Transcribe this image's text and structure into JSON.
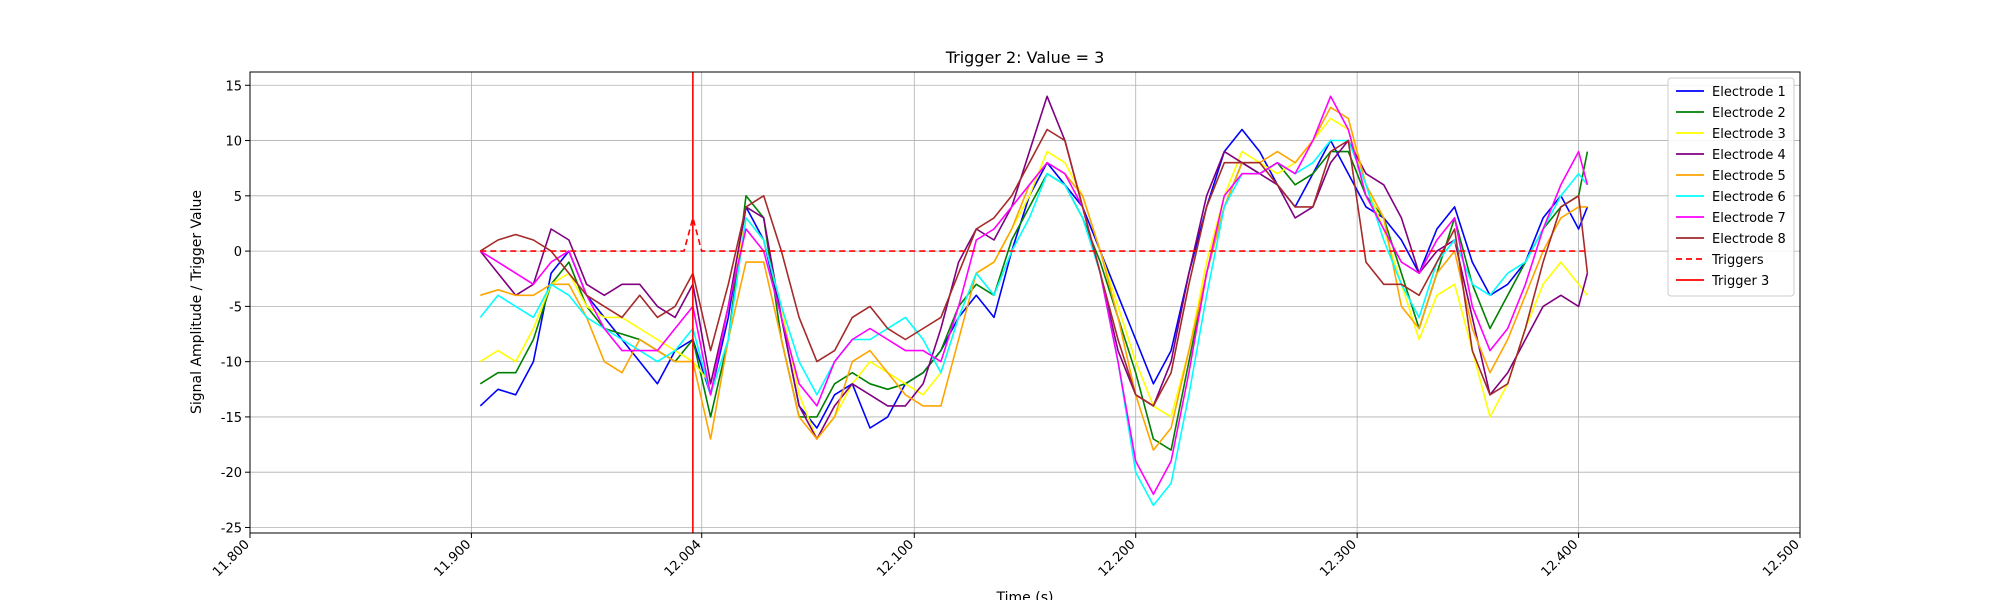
{
  "chart_data": {
    "type": "line",
    "title": "Trigger 2: Value = 3",
    "xlabel": "Time (s)",
    "ylabel": "Signal Amplitude / Trigger Value",
    "xlim": [
      11.8,
      12.5
    ],
    "ylim": [
      -25.5,
      16.2
    ],
    "x_ticks": [
      11.8,
      11.9,
      12.004,
      12.1,
      12.2,
      12.3,
      12.4,
      12.5
    ],
    "x_tick_labels": [
      "11.800",
      "11.900",
      "12.004",
      "12.100",
      "12.200",
      "12.300",
      "12.400",
      "12.500"
    ],
    "y_ticks": [
      -25,
      -20,
      -15,
      -10,
      -5,
      0,
      5,
      10,
      15
    ],
    "grid": true,
    "legend_position": "top-right",
    "x": [
      11.904,
      11.912,
      11.92,
      11.928,
      11.936,
      11.944,
      11.952,
      11.96,
      11.968,
      11.976,
      11.984,
      11.992,
      12.0,
      12.008,
      12.016,
      12.024,
      12.032,
      12.04,
      12.048,
      12.056,
      12.064,
      12.072,
      12.08,
      12.088,
      12.096,
      12.104,
      12.112,
      12.12,
      12.128,
      12.136,
      12.144,
      12.152,
      12.16,
      12.168,
      12.176,
      12.184,
      12.192,
      12.2,
      12.208,
      12.216,
      12.224,
      12.232,
      12.24,
      12.248,
      12.256,
      12.264,
      12.272,
      12.28,
      12.288,
      12.296,
      12.304,
      12.312,
      12.32,
      12.328,
      12.336,
      12.344,
      12.352,
      12.36,
      12.368,
      12.376,
      12.384,
      12.392,
      12.4,
      12.404
    ],
    "series": [
      {
        "name": "Electrode 1",
        "color": "#0000ff",
        "values": [
          -14,
          -12.5,
          -13,
          -10,
          -2,
          0,
          -4,
          -6,
          -8,
          -10,
          -12,
          -9,
          -8,
          -13,
          -6,
          4,
          1,
          -6,
          -14,
          -16,
          -13,
          -12,
          -16,
          -15,
          -12,
          -11,
          -9,
          -6,
          -4,
          -6,
          0,
          5,
          8,
          6,
          4,
          0,
          -4,
          -8,
          -12,
          -9,
          -2,
          4,
          9,
          11,
          9,
          6,
          4,
          7,
          10,
          7,
          4,
          3,
          1,
          -2,
          2,
          4,
          -1,
          -4,
          -3,
          -1,
          3,
          5,
          2,
          4
        ]
      },
      {
        "name": "Electrode 2",
        "color": "#008000",
        "values": [
          -12,
          -11,
          -11,
          -8,
          -3,
          -1,
          -5,
          -7,
          -7.5,
          -8,
          -9,
          -10,
          -8,
          -15,
          -8,
          5,
          3,
          -8,
          -15,
          -15,
          -12,
          -11,
          -12,
          -12.5,
          -12,
          -11,
          -9,
          -5,
          -3,
          -4,
          1,
          4,
          7,
          6,
          3,
          -1,
          -6,
          -11,
          -17,
          -18,
          -10,
          -2,
          4,
          8,
          7,
          8,
          6,
          7,
          9,
          9,
          5,
          3,
          -2,
          -7,
          -2,
          3,
          -3,
          -7,
          -4,
          -1,
          2,
          4,
          5,
          9
        ]
      },
      {
        "name": "Electrode 3",
        "color": "#ffff00",
        "values": [
          -10,
          -9,
          -10,
          -7,
          -3,
          -2,
          -5,
          -6,
          -6,
          -7,
          -8,
          -9,
          -10,
          -12,
          -5,
          3,
          1,
          -5,
          -13,
          -17,
          -15,
          -12,
          -10,
          -11,
          -12,
          -13,
          -11,
          -6,
          -2,
          -1,
          2,
          5,
          9,
          8,
          5,
          0,
          -5,
          -10,
          -14,
          -15,
          -9,
          -1,
          5,
          9,
          8,
          7,
          8,
          10,
          12,
          11,
          6,
          2,
          -3,
          -8,
          -4,
          -3,
          -9,
          -15,
          -12,
          -7,
          -3,
          -1,
          -3,
          -4
        ]
      },
      {
        "name": "Electrode 4",
        "color": "#800080",
        "values": [
          0,
          -2,
          -4,
          -3,
          2,
          1,
          -3,
          -4,
          -3,
          -3,
          -5,
          -6,
          -3,
          -12,
          -5,
          4,
          3,
          -6,
          -14,
          -17,
          -14,
          -12,
          -13,
          -14,
          -14,
          -12,
          -7,
          -1,
          2,
          1,
          4,
          9,
          14,
          10,
          4,
          -2,
          -9,
          -13,
          -14,
          -10,
          -2,
          5,
          9,
          8,
          7,
          6,
          3,
          4,
          8,
          10,
          7,
          6,
          3,
          -2,
          0,
          1,
          -6,
          -13,
          -11,
          -8,
          -5,
          -4,
          -5,
          -2
        ]
      },
      {
        "name": "Electrode 5",
        "color": "#ffa500",
        "values": [
          -4,
          -3.5,
          -4,
          -4,
          -3,
          -3,
          -6,
          -10,
          -11,
          -8,
          -9,
          -10,
          -10,
          -17,
          -8,
          -1,
          -1,
          -8,
          -15,
          -17,
          -15,
          -10,
          -9,
          -11,
          -13,
          -14,
          -14,
          -8,
          -2,
          -1,
          2,
          6,
          8,
          7,
          5,
          0,
          -6,
          -13,
          -18,
          -16,
          -9,
          -2,
          4,
          8,
          8,
          9,
          8,
          10,
          13,
          12,
          6,
          3,
          -5,
          -7,
          -2,
          0,
          -7,
          -11,
          -8,
          -4,
          0,
          3,
          4,
          4
        ]
      },
      {
        "name": "Electrode 6",
        "color": "#00ffff",
        "values": [
          -6,
          -4,
          -5,
          -6,
          -3,
          -4,
          -6,
          -7,
          -8,
          -9,
          -10,
          -9,
          -7,
          -13,
          -8,
          3,
          1,
          -5,
          -10,
          -13,
          -10,
          -8,
          -8,
          -7,
          -6,
          -8,
          -11,
          -6,
          -2,
          -4,
          0,
          3,
          7,
          6,
          3,
          -2,
          -10,
          -20,
          -23,
          -21,
          -13,
          -4,
          4,
          7,
          7,
          8,
          7,
          8,
          10,
          10,
          6,
          1,
          -3,
          -6,
          -1,
          1,
          -3,
          -4,
          -2,
          -1,
          2,
          5,
          7,
          6
        ]
      },
      {
        "name": "Electrode 7",
        "color": "#ff00ff",
        "values": [
          0,
          -1,
          -2,
          -3,
          -1,
          0,
          -4,
          -7,
          -9,
          -9,
          -9,
          -7,
          -5,
          -13,
          -5,
          2,
          0,
          -6,
          -12,
          -14,
          -10,
          -8,
          -7,
          -8,
          -9,
          -9,
          -10,
          -5,
          1,
          2,
          4,
          6,
          8,
          7,
          4,
          -2,
          -10,
          -19,
          -22,
          -19,
          -11,
          -2,
          5,
          7,
          7,
          8,
          7,
          10,
          14,
          11,
          5,
          2,
          -1,
          -2,
          1,
          3,
          -5,
          -9,
          -7,
          -3,
          2,
          6,
          9,
          6
        ]
      },
      {
        "name": "Electrode 8",
        "color": "#a52a2a",
        "values": [
          0,
          1,
          1.5,
          1,
          0,
          -2,
          -4,
          -5,
          -6,
          -4,
          -6,
          -5,
          -2,
          -9,
          -3,
          4,
          5,
          0,
          -6,
          -10,
          -9,
          -6,
          -5,
          -7,
          -8,
          -7,
          -6,
          -2,
          2,
          3,
          5,
          8,
          11,
          10,
          4,
          -2,
          -8,
          -13,
          -14,
          -11,
          -3,
          4,
          8,
          8,
          8,
          6,
          4,
          4,
          9,
          10,
          -1,
          -3,
          -3,
          -4,
          -1,
          2,
          -9,
          -13,
          -12,
          -7,
          -1,
          4,
          5,
          -2
        ]
      }
    ],
    "triggers": {
      "name": "Triggers",
      "color": "#ff0000",
      "line_style": "dashed",
      "x": [
        11.904,
        11.996,
        12.0,
        12.004,
        12.404
      ],
      "y": [
        0,
        0,
        3,
        0,
        0
      ]
    },
    "trigger_marker": {
      "name": "Trigger 3",
      "color": "#ff0000",
      "x": 12.0
    }
  }
}
